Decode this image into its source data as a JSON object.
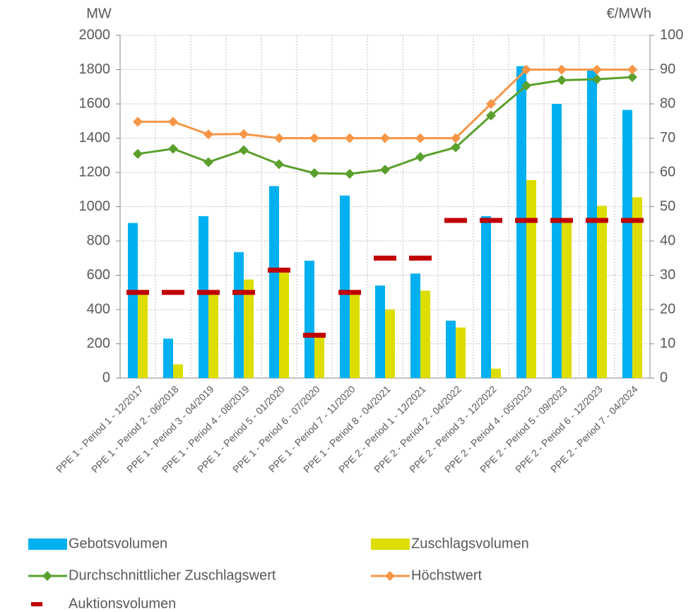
{
  "chart_data": {
    "type": "combo",
    "y_label": "MW",
    "y2_label": "€/MWh",
    "categories": [
      "PPE 1 - Period 1 - 12/2017",
      "PPE 1 - Period 2 - 06/2018",
      "PPE 1 - Period 3 - 04/2019",
      "PPE 1 - Period 4 - 08/2019",
      "PPE 1 - Period 5 - 01/2020",
      "PPE 1 - Period 6 - 07/2020",
      "PPE 1 - Period 7 - 11/2020",
      "PPE 1 - Period 8 - 04/2021",
      "PPE 2 - Period 1 - 12/2021",
      "PPE 2 - Period 2 - 04/2022",
      "PPE 2 - Period 3 - 12/2022",
      "PPE 2 - Period 4 - 05/2023",
      "PPE 2 - Period 5 - 09/2023",
      "PPE 2 - Period 6 - 12/2023",
      "PPE 2 - Period 7 - 04/2024"
    ],
    "series": [
      {
        "name": "Gebotsvolumen",
        "type": "bar",
        "color": "#00b0f0",
        "values": [
          905,
          230,
          945,
          735,
          1120,
          685,
          1065,
          540,
          610,
          335,
          945,
          1820,
          1600,
          1800,
          1565
        ]
      },
      {
        "name": "Zuschlagsvolumen",
        "type": "bar",
        "color": "#dddd00",
        "values": [
          500,
          80,
          500,
          575,
          625,
          250,
          500,
          400,
          510,
          295,
          55,
          1155,
          920,
          1005,
          1055
        ]
      },
      {
        "name": "Durchschnittlicher Zuschlagswert",
        "type": "line",
        "axis": "y2",
        "color": "#5aa02c",
        "values": [
          65.4,
          66.9,
          63.0,
          66.5,
          62.4,
          59.8,
          59.6,
          60.8,
          64.5,
          67.3,
          76.6,
          85.3,
          86.9,
          87.2,
          87.8
        ]
      },
      {
        "name": "Höchstwert",
        "type": "line",
        "axis": "y2",
        "color": "#f79646",
        "values": [
          74.8,
          74.8,
          71.1,
          71.2,
          70,
          70,
          70,
          70,
          70,
          70,
          80,
          90,
          90,
          90,
          90
        ]
      },
      {
        "name": "Auktionsvolumen",
        "type": "dash",
        "color": "#c00000",
        "values": [
          500,
          500,
          500,
          500,
          630,
          250,
          500,
          700,
          700,
          920,
          920,
          920,
          920,
          920,
          920
        ]
      }
    ],
    "ylim": [
      0,
      2000
    ],
    "yticks": [
      0,
      200,
      400,
      600,
      800,
      1000,
      1200,
      1400,
      1600,
      1800,
      2000
    ],
    "y2lim": [
      0,
      100
    ],
    "y2ticks": [
      0,
      10,
      20,
      30,
      40,
      50,
      60,
      70,
      80,
      90,
      100
    ],
    "grid": true
  }
}
